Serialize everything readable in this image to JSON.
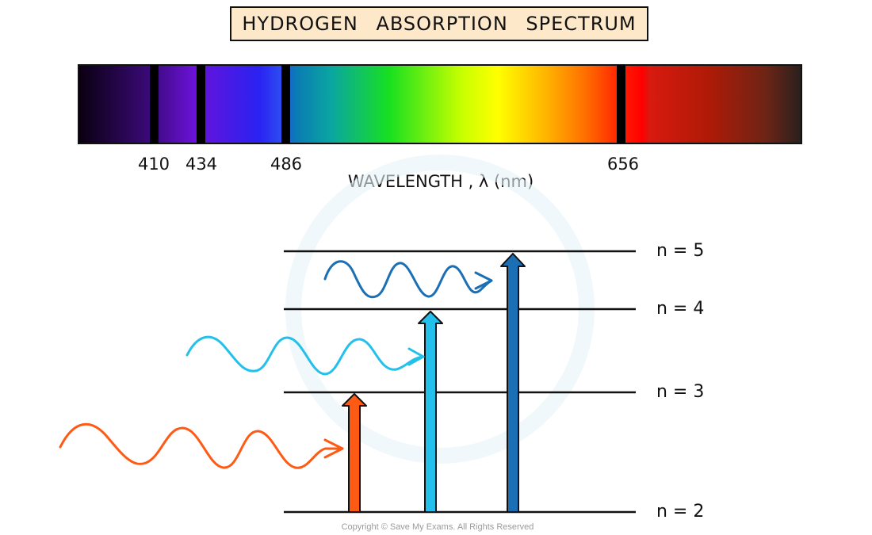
{
  "title": "HYDROGEN ABSORPTION SPECTRUM",
  "spectrum": {
    "wavelength_labels": [
      "410",
      "434",
      "486",
      "656"
    ],
    "axis_label": "WAVELENGTH , λ (nm)"
  },
  "levels": [
    "n = 5",
    "n = 4",
    "n = 3",
    "n = 2"
  ],
  "copyright": "Copyright © Save My Exams. All Rights Reserved",
  "colors": {
    "title_bg": "#fde9c9",
    "photon_red": "#ff5a14",
    "photon_cyan": "#22c0ea",
    "photon_blue": "#1a6fb5"
  }
}
